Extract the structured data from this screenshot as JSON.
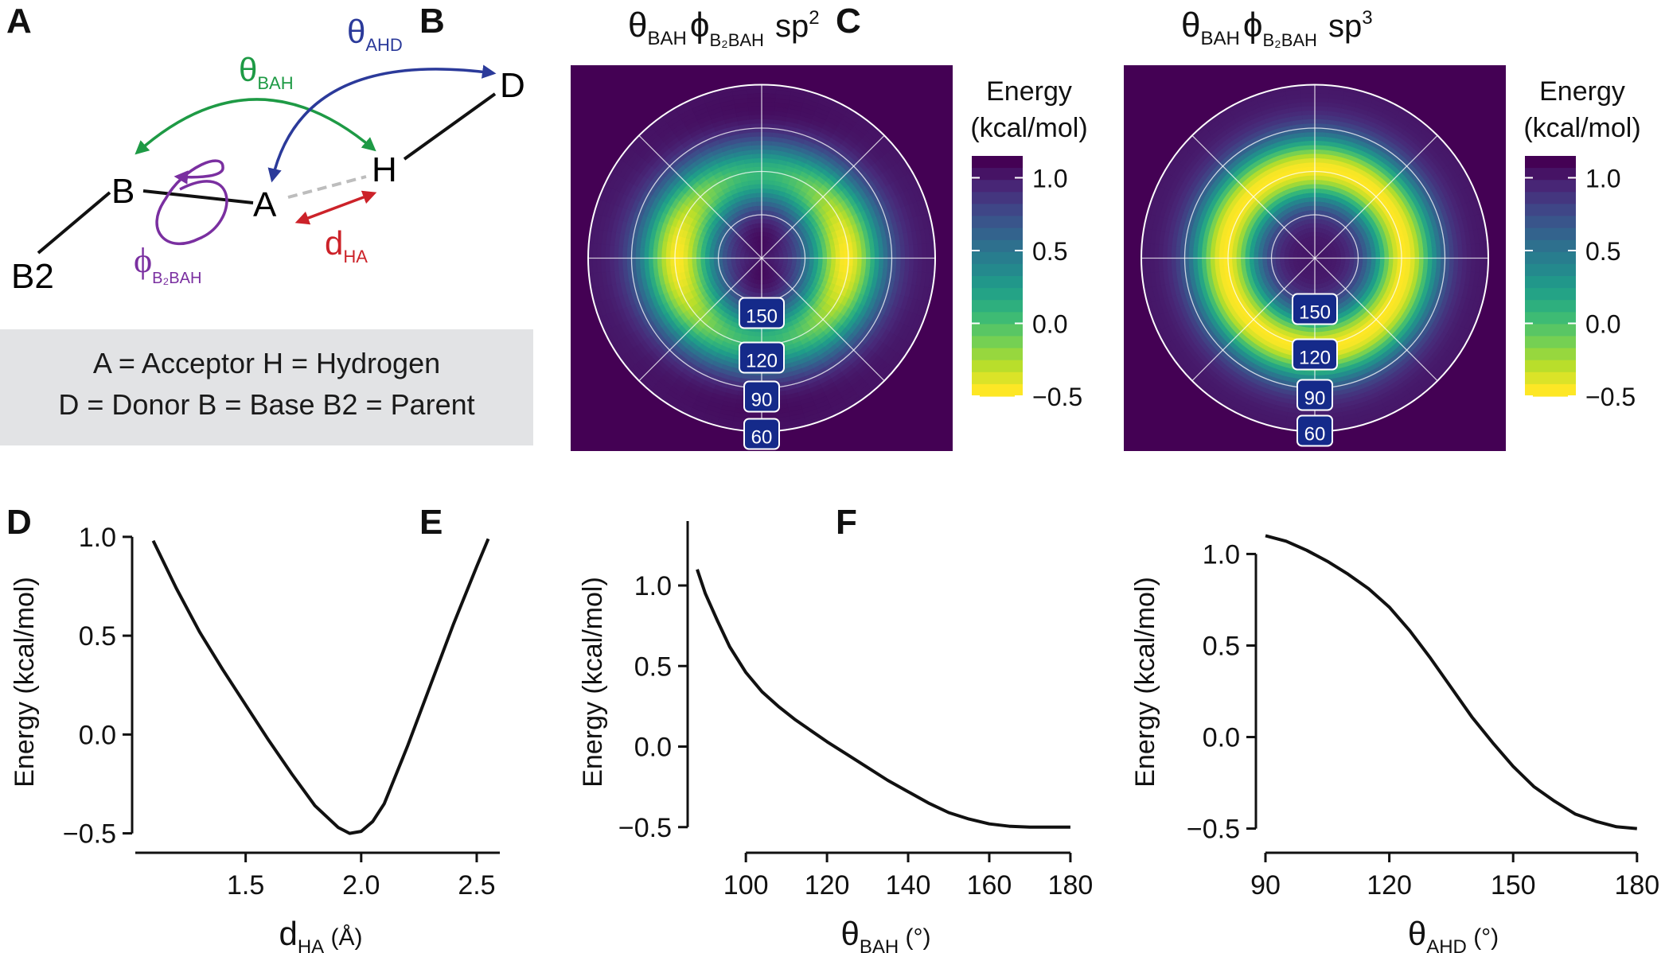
{
  "panel_labels": [
    "A",
    "B",
    "C",
    "D",
    "E",
    "F"
  ],
  "diagram_a": {
    "atoms": {
      "D": "D",
      "H": "H",
      "A": "A",
      "B": "B",
      "B2": "B2"
    },
    "angles": {
      "theta_bah": {
        "sym": "θ",
        "sub": "BAH"
      },
      "theta_ahd": {
        "sym": "θ",
        "sub": "AHD"
      },
      "phi": {
        "sym": "ϕ",
        "sub": "B₂BAH"
      },
      "dha": {
        "sym": "d",
        "sub": "HA"
      }
    },
    "legend_line1": "A = Acceptor  H = Hydrogen",
    "legend_line2": "D = Donor  B = Base  B2 = Parent",
    "colors": {
      "theta_bah": "#1e9a45",
      "theta_ahd": "#2b3a9a",
      "phi": "#7a2fa0",
      "dha": "#cc2229",
      "bond": "#111111",
      "hbond": "#bdbdbd"
    }
  },
  "chart_data": [
    {
      "type": "heatmap",
      "panel": "B",
      "title": {
        "sym1": "θ",
        "sub1": "BAH",
        "sym2": "ϕ",
        "sub2": "B₂BAH",
        "hyb": "sp",
        "sup": "2"
      },
      "colorbar_title": [
        "Energy",
        "(kcal/mol)"
      ],
      "colorbar_ticks": [
        "1.0",
        "0.5",
        "0.0",
        "−0.5"
      ],
      "colorbar_range": [
        -0.5,
        1.15
      ],
      "ring_labels": [
        "150",
        "120",
        "90",
        "60"
      ],
      "projection": "polar",
      "hybridization": "sp2"
    },
    {
      "type": "heatmap",
      "panel": "C",
      "title": {
        "sym1": "θ",
        "sub1": "BAH",
        "sym2": "ϕ",
        "sub2": "B₂BAH",
        "hyb": "sp",
        "sup": "3"
      },
      "colorbar_title": [
        "Energy",
        "(kcal/mol)"
      ],
      "colorbar_ticks": [
        "1.0",
        "0.5",
        "0.0",
        "−0.5"
      ],
      "colorbar_range": [
        -0.5,
        1.15
      ],
      "ring_labels": [
        "150",
        "120",
        "90",
        "60"
      ],
      "projection": "polar",
      "hybridization": "sp3"
    },
    {
      "type": "line",
      "panel": "D",
      "xlabel": {
        "sym": "d",
        "sub": "HA",
        "unit": " (Å)"
      },
      "ylabel": "Energy (kcal/mol)",
      "xlim": [
        1.05,
        2.6
      ],
      "ylim": [
        -0.55,
        1.08
      ],
      "xticks": [
        1.5,
        2.0,
        2.5
      ],
      "xtick_labels": [
        "1.5",
        "2.0",
        "2.5"
      ],
      "yticks": [
        1.0,
        0.5,
        0.0,
        -0.5
      ],
      "ytick_labels": [
        "1.0",
        "0.5",
        "0.0",
        "−0.5"
      ],
      "x": [
        1.1,
        1.2,
        1.3,
        1.4,
        1.5,
        1.6,
        1.7,
        1.8,
        1.9,
        1.95,
        2.0,
        2.05,
        2.1,
        2.2,
        2.3,
        2.4,
        2.5,
        2.55
      ],
      "y": [
        0.98,
        0.74,
        0.52,
        0.33,
        0.15,
        -0.03,
        -0.2,
        -0.36,
        -0.47,
        -0.5,
        -0.49,
        -0.44,
        -0.35,
        -0.06,
        0.25,
        0.56,
        0.85,
        0.99
      ]
    },
    {
      "type": "line",
      "panel": "E",
      "xlabel": {
        "sym": "θ",
        "sub": "BAH",
        "unit": " (°)"
      },
      "ylabel": "Energy (kcal/mol)",
      "xlim": [
        88,
        181
      ],
      "ylim": [
        -0.6,
        1.4
      ],
      "xticks": [
        100,
        120,
        140,
        160,
        180
      ],
      "xtick_labels": [
        "100",
        "120",
        "140",
        "160",
        "180"
      ],
      "yticks": [
        1.0,
        0.5,
        0.0,
        -0.5
      ],
      "ytick_labels": [
        "1.0",
        "0.5",
        "0.0",
        "−0.5"
      ],
      "x": [
        88,
        90,
        93,
        96,
        100,
        104,
        108,
        112,
        116,
        120,
        125,
        130,
        135,
        140,
        145,
        150,
        155,
        160,
        165,
        170,
        175,
        180
      ],
      "y": [
        1.1,
        0.95,
        0.78,
        0.62,
        0.46,
        0.34,
        0.25,
        0.17,
        0.1,
        0.03,
        -0.05,
        -0.13,
        -0.21,
        -0.28,
        -0.35,
        -0.41,
        -0.45,
        -0.48,
        -0.495,
        -0.5,
        -0.5,
        -0.5
      ]
    },
    {
      "type": "line",
      "panel": "F",
      "xlabel": {
        "sym": "θ",
        "sub": "AHD",
        "unit": " (°)"
      },
      "ylabel": "Energy (kcal/mol)",
      "xlim": [
        90,
        181
      ],
      "ylim": [
        -0.58,
        1.18
      ],
      "xticks": [
        90,
        120,
        150,
        180
      ],
      "xtick_labels": [
        "90",
        "120",
        "150",
        "180"
      ],
      "yticks": [
        1.0,
        0.5,
        0.0,
        -0.5
      ],
      "ytick_labels": [
        "1.0",
        "0.5",
        "0.0",
        "−0.5"
      ],
      "x": [
        90,
        95,
        100,
        105,
        110,
        115,
        120,
        125,
        130,
        135,
        140,
        145,
        150,
        155,
        160,
        165,
        170,
        175,
        180
      ],
      "y": [
        1.1,
        1.07,
        1.02,
        0.96,
        0.89,
        0.81,
        0.71,
        0.58,
        0.43,
        0.27,
        0.11,
        -0.03,
        -0.16,
        -0.27,
        -0.35,
        -0.42,
        -0.46,
        -0.49,
        -0.5
      ]
    }
  ]
}
